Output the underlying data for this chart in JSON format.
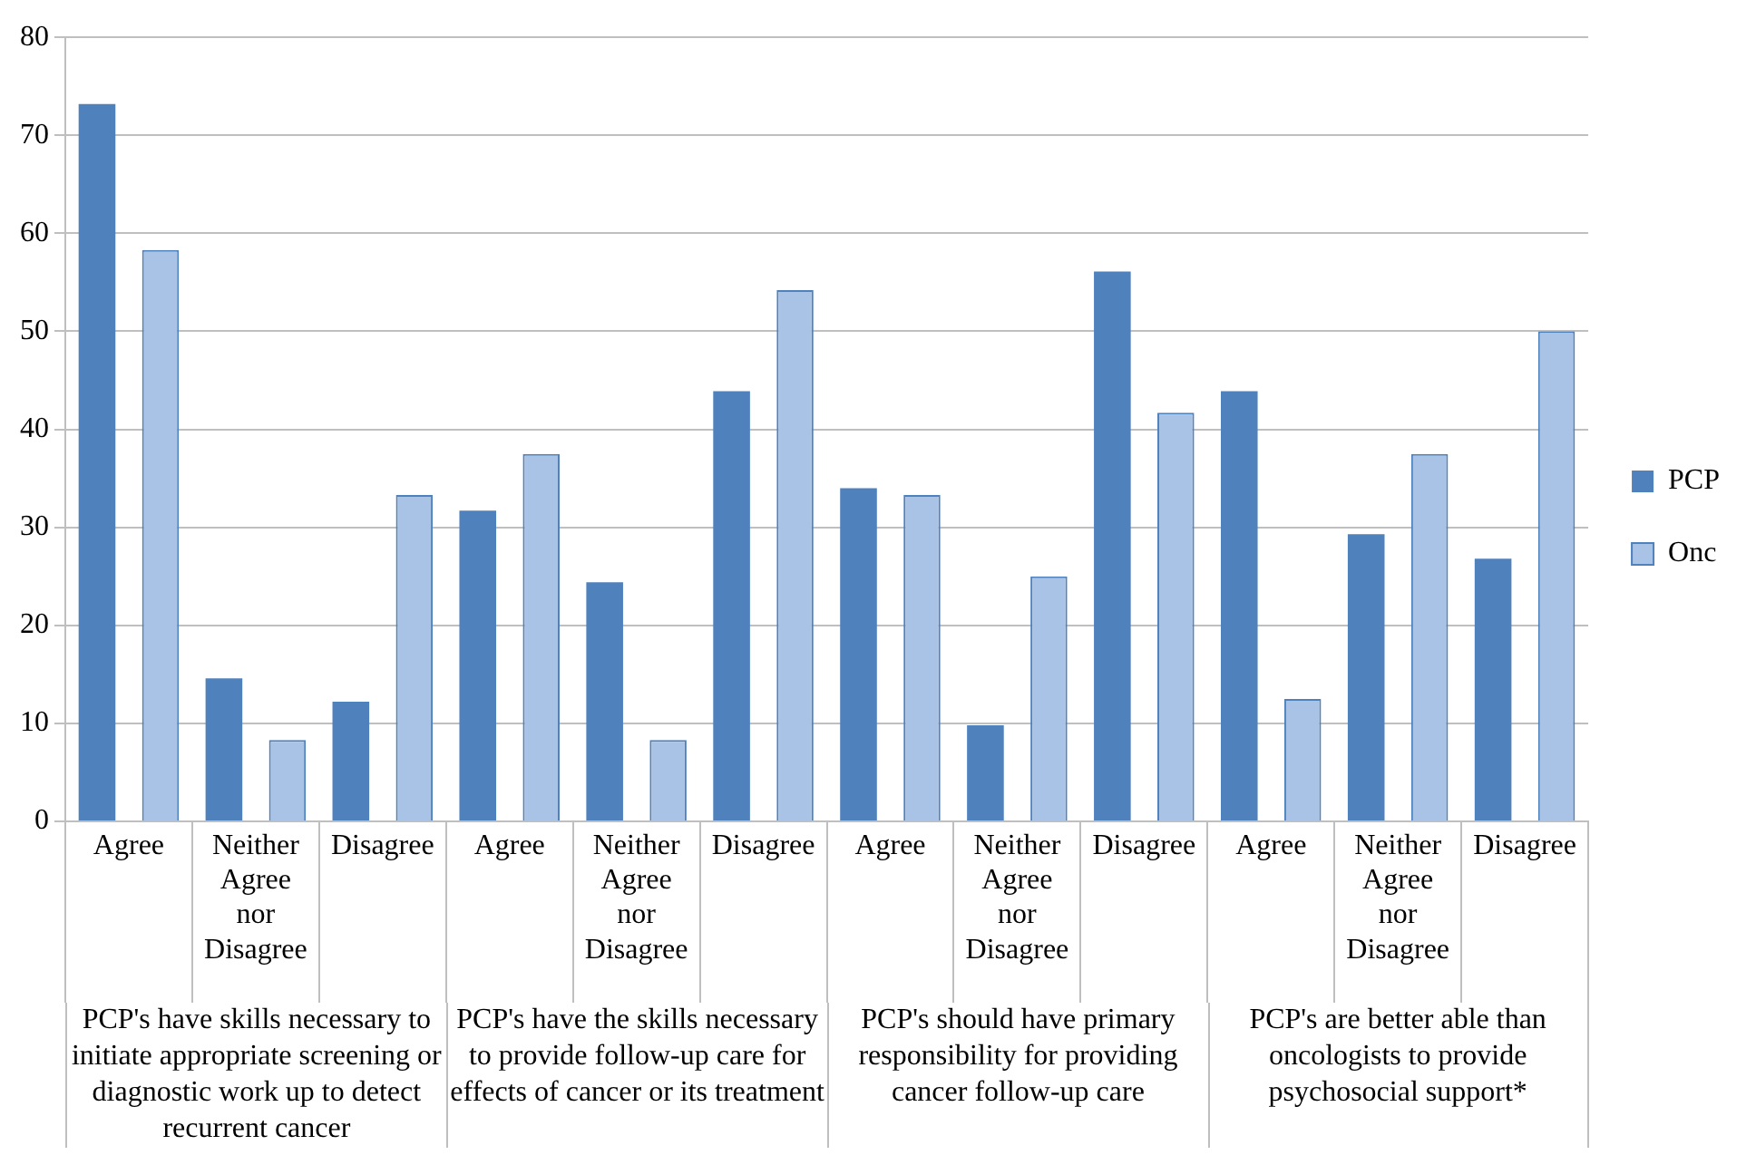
{
  "chart_data": {
    "type": "bar",
    "categories": [
      "Agree",
      "Neither Agree nor Disagree",
      "Disagree",
      "Agree",
      "Neither Agree nor Disagree",
      "Disagree",
      "Agree",
      "Neither Agree nor Disagree",
      "Disagree",
      "Agree",
      "Neither Agree nor Disagree",
      "Disagree"
    ],
    "series": [
      {
        "name": "PCP",
        "color": "#4f81bd",
        "values": [
          73.2,
          14.6,
          12.2,
          31.7,
          24.4,
          43.9,
          34.0,
          9.8,
          56.1,
          43.9,
          29.3,
          26.8
        ]
      },
      {
        "name": "Onc",
        "color": "#a9c3e6",
        "values": [
          58.3,
          8.3,
          33.3,
          37.5,
          8.3,
          54.2,
          33.3,
          25.0,
          41.7,
          12.5,
          37.5,
          50.0
        ]
      }
    ],
    "annotations": [
      "PCP's have skills necessary to initiate appropriate screening or diagnostic work up to detect recurrent cancer",
      "PCP's have the skills necessary to provide follow-up care for effects of cancer or its treatment",
      "PCP's should have primary responsibility for providing cancer follow-up care",
      "PCP's are better able than oncologists to provide psychosocial support*"
    ],
    "ylim": [
      0,
      80
    ],
    "yticks": [
      0,
      10,
      20,
      30,
      40,
      50,
      60,
      70,
      80
    ],
    "grid": "y",
    "legend": "right"
  }
}
